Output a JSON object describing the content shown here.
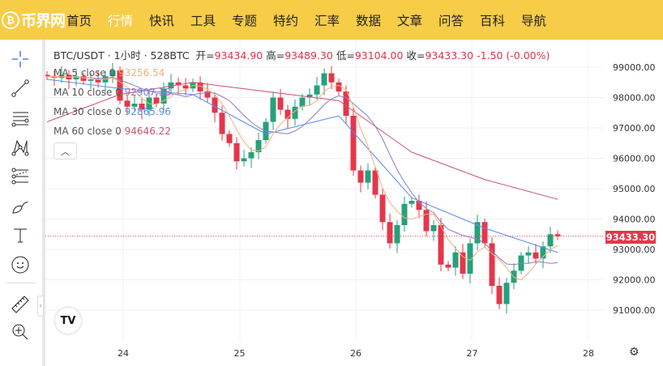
{
  "header": {
    "logo_text": "币界网",
    "nav": [
      {
        "label": "首页"
      },
      {
        "label": "行情",
        "active": true
      },
      {
        "label": "快讯"
      },
      {
        "label": "工具"
      },
      {
        "label": "专题"
      },
      {
        "label": "特约"
      },
      {
        "label": "汇率"
      },
      {
        "label": "数据"
      },
      {
        "label": "文章"
      },
      {
        "label": "问答"
      },
      {
        "label": "百科"
      },
      {
        "label": "导航"
      }
    ]
  },
  "toolbar": [
    "crosshair-icon",
    "trend-line-icon",
    "horizontal-lines-icon",
    "pattern-icon",
    "fib-icon",
    "brush-icon",
    "text-icon",
    "emoji-icon",
    "ruler-icon",
    "zoom-in-icon"
  ],
  "legend": {
    "symbol": "BTC/USDT · 1小时 · 528BTC",
    "open_label": "开=",
    "open": "93434.90",
    "high_label": "高=",
    "high": "93489.30",
    "low_label": "低=",
    "low": "93104.00",
    "close_label": "收=",
    "close": "93433.30",
    "change": "-1.50 (-0.00%)"
  },
  "ma": [
    {
      "label": "MA 5 close 0",
      "value": "93256.54",
      "color": "#f3b27a"
    },
    {
      "label": "MA 10 close 0",
      "value": "92907.38",
      "color": "#8e7cc3"
    },
    {
      "label": "MA 30 close 0",
      "value": "92865.96",
      "color": "#5b8def"
    },
    {
      "label": "MA 60 close 0",
      "value": "94646.22",
      "color": "#c9546e"
    }
  ],
  "colors": {
    "up": "#26a17b",
    "down": "#e5364a",
    "header": "#f7cd48"
  },
  "chart_data": {
    "type": "candlestick",
    "y_ticks": [
      "99000.00",
      "98000.00",
      "97000.00",
      "96000.00",
      "95000.00",
      "94000.00",
      "93000.00",
      "92000.00",
      "91000.00"
    ],
    "ylim": [
      90200,
      99600
    ],
    "x_ticks": [
      "24",
      "25",
      "26",
      "27",
      "28"
    ],
    "first_open": 98750,
    "closes": [
      98700,
      98650,
      98750,
      98600,
      98700,
      98550,
      98600,
      98500,
      98700,
      98900,
      97900,
      97700,
      97800,
      97600,
      98000,
      97800,
      98300,
      98500,
      98400,
      98300,
      98500,
      98200,
      98000,
      97500,
      96800,
      96500,
      95900,
      96000,
      96200,
      96600,
      97200,
      98000,
      97600,
      97300,
      97700,
      98000,
      98100,
      98400,
      98800,
      98500,
      98200,
      97400,
      95600,
      95200,
      95600,
      94800,
      93900,
      93200,
      93800,
      94500,
      94600,
      94300,
      93600,
      93800,
      92500,
      92400,
      92900,
      92200,
      93200,
      93900,
      93200,
      91800,
      91200,
      91900,
      92300,
      92800,
      92900,
      92700,
      93100,
      93500,
      93433.3
    ],
    "ma30_keypoints": [
      98600,
      98300,
      98100,
      96800,
      97400,
      94700,
      93700,
      92900
    ],
    "ma60_keypoints": [
      97200,
      98100,
      98500,
      98200,
      97900,
      96200,
      95300,
      94650
    ],
    "last_price": "93433.30"
  },
  "tv_logo": "17"
}
